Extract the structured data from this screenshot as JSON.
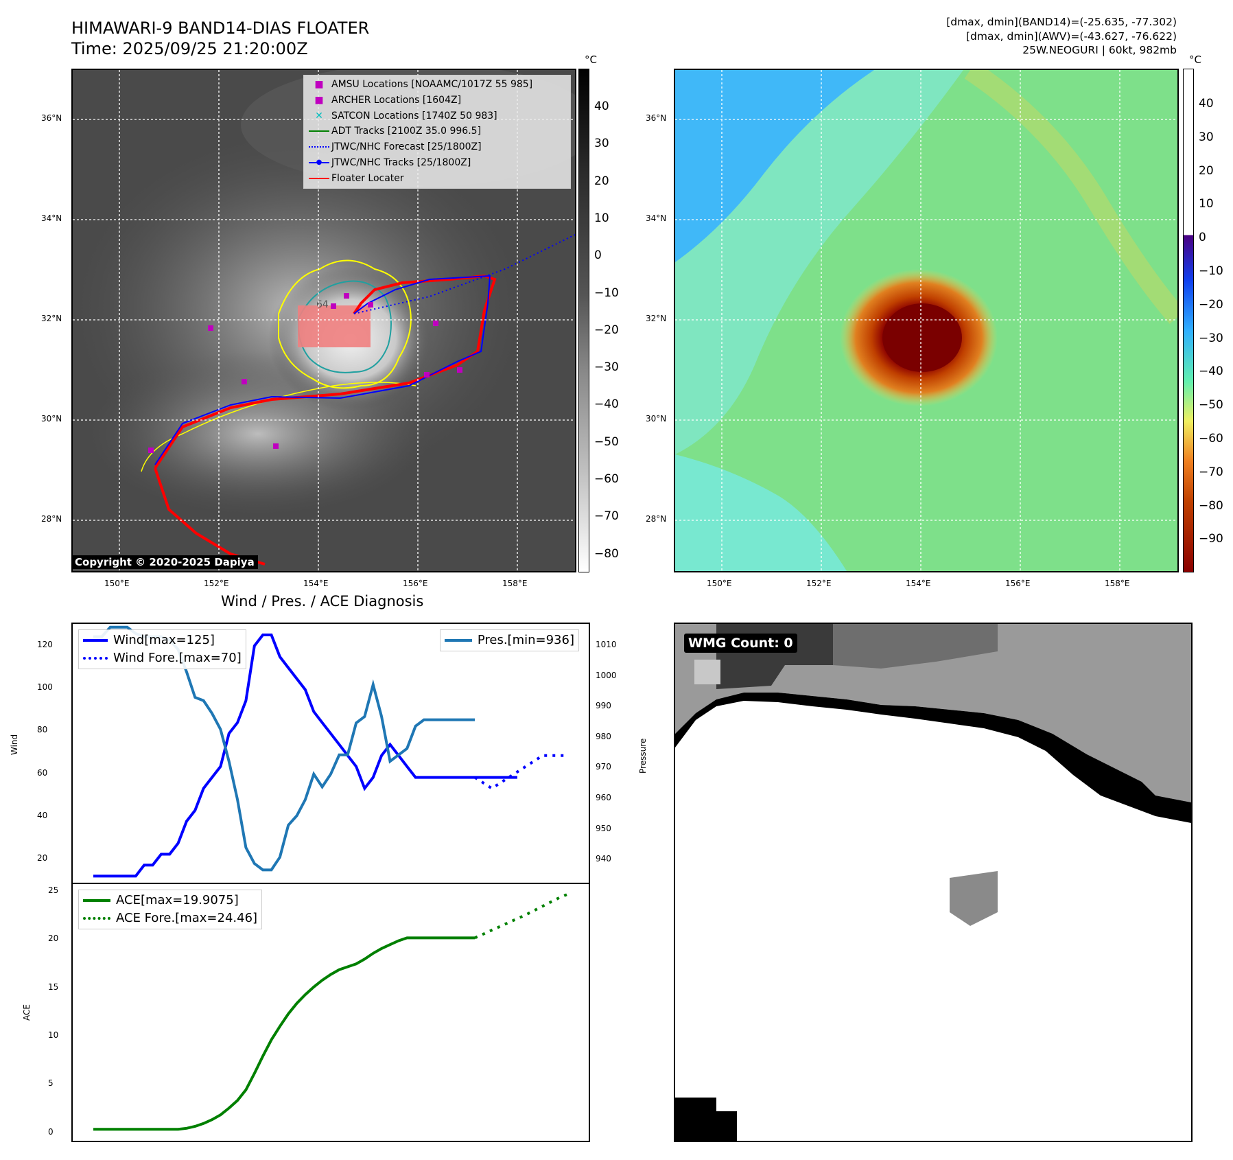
{
  "header": {
    "title_line1": "HIMAWARI-9 BAND14-DIAS FLOATER",
    "title_line2": "Time: 2025/09/25 21:20:00Z",
    "info_line1": "[dmax, dmin](BAND14)=(-25.635, -77.302)",
    "info_line2": "[dmax, dmin](AWV)=(-43.627, -76.622)",
    "info_line3": "25W.NEOGURI | 60kt, 982mb"
  },
  "map": {
    "lat_labels": [
      "36°N",
      "34°N",
      "32°N",
      "30°N",
      "28°N"
    ],
    "lon_labels": [
      "150°E",
      "152°E",
      "154°E",
      "156°E",
      "158°E"
    ],
    "contour_label": "64",
    "copyright": "Copyright © 2020-2025 Dapiya",
    "legend": [
      {
        "label": "AMSU Locations [NOAAMC/1017Z 55 985]",
        "color": "#bf00bf",
        "symbol": "square"
      },
      {
        "label": "ARCHER Locations [1604Z]",
        "color": "#bf00bf",
        "symbol": "square"
      },
      {
        "label": "SATCON Locations [1740Z 50 983]",
        "color": "#00bfbf",
        "symbol": "x"
      },
      {
        "label": "ADT Tracks [2100Z 35.0 996.5]",
        "color": "#008000",
        "symbol": "line"
      },
      {
        "label": "JTWC/NHC Forecast [25/1800Z]",
        "color": "#0000ff",
        "symbol": "dotted"
      },
      {
        "label": "JTWC/NHC Tracks [25/1800Z]",
        "color": "#0000ff",
        "symbol": "line-dot"
      },
      {
        "label": "Floater Locater",
        "color": "#ff0000",
        "symbol": "line"
      }
    ]
  },
  "colorbar_left": {
    "unit": "°C",
    "ticks": [
      "40",
      "30",
      "20",
      "10",
      "0",
      "−10",
      "−20",
      "−30",
      "−40",
      "−50",
      "−60",
      "−70",
      "−80"
    ]
  },
  "colorbar_right": {
    "unit": "°C",
    "ticks": [
      "40",
      "30",
      "20",
      "10",
      "0",
      "−10",
      "−20",
      "−30",
      "−40",
      "−50",
      "−60",
      "−70",
      "−80",
      "−90"
    ]
  },
  "diagnosis": {
    "title": "Wind / Pres. / ACE Diagnosis",
    "wind_axis_label": "Wind",
    "pressure_axis_label": "Pressure",
    "ace_axis_label": "ACE",
    "wind_ticks": [
      "120",
      "100",
      "80",
      "60",
      "40",
      "20"
    ],
    "pressure_ticks": [
      "1010",
      "1000",
      "990",
      "980",
      "970",
      "960",
      "950",
      "940"
    ],
    "ace_ticks": [
      "25",
      "20",
      "15",
      "10",
      "5",
      "0"
    ],
    "legend_wind": "Wind[max=125]",
    "legend_wind_fore": "Wind Fore.[max=70]",
    "legend_pres": "Pres.[min=936]",
    "legend_ace": "ACE[max=19.9075]",
    "legend_ace_fore": "ACE Fore.[max=24.46]"
  },
  "wmg": {
    "badge": "WMG Count: 0"
  },
  "chart_data": [
    {
      "type": "line",
      "title": "Wind / Pres. / ACE Diagnosis",
      "ylabel": "Wind",
      "ylim": [
        12,
        130
      ],
      "series": [
        {
          "name": "Wind[max=125]",
          "color": "#0000ff",
          "x": [
            0,
            1,
            2,
            3,
            4,
            5,
            6,
            7,
            8,
            9,
            10,
            11,
            12,
            13,
            14,
            15,
            16,
            17,
            18,
            19,
            20,
            21,
            22,
            23,
            24,
            25,
            26,
            27,
            28,
            29,
            30,
            31,
            32,
            33,
            34,
            35,
            36,
            37,
            38,
            39,
            40,
            41,
            42,
            43,
            44,
            45,
            46,
            47,
            48,
            49,
            50
          ],
          "values": [
            15,
            15,
            15,
            15,
            15,
            15,
            20,
            20,
            25,
            25,
            30,
            40,
            45,
            55,
            60,
            65,
            80,
            85,
            95,
            120,
            125,
            125,
            115,
            110,
            105,
            100,
            90,
            85,
            80,
            75,
            70,
            65,
            55,
            60,
            70,
            75,
            70,
            65,
            60,
            60,
            60,
            60,
            60,
            60,
            60,
            60,
            60,
            60,
            60,
            60,
            60
          ]
        },
        {
          "name": "Wind Fore.[max=70]",
          "color": "#0000ff",
          "style": "dotted",
          "x": [
            45,
            47,
            49,
            51,
            53,
            55,
            56
          ],
          "values": [
            60,
            55,
            60,
            65,
            70,
            70,
            70
          ]
        },
        {
          "name": "Pres.[min=936]",
          "color": "#1f77b4",
          "axis": "right",
          "ylim": [
            932,
            1013
          ],
          "x": [
            0,
            1,
            2,
            3,
            4,
            5,
            6,
            7,
            8,
            9,
            10,
            11,
            12,
            13,
            14,
            15,
            16,
            17,
            18,
            19,
            20,
            21,
            22,
            23,
            24,
            25,
            26,
            27,
            28,
            29,
            30,
            31,
            32,
            33,
            34,
            35,
            36,
            37,
            38,
            39,
            40,
            41,
            42,
            43,
            44,
            45
          ],
          "values": [
            1009,
            1009,
            1012,
            1012,
            1012,
            1010,
            1009,
            1009,
            1009,
            1008,
            1005,
            998,
            990,
            989,
            985,
            980,
            970,
            958,
            943,
            938,
            936,
            936,
            940,
            950,
            953,
            958,
            966,
            962,
            966,
            972,
            972,
            982,
            984,
            994,
            984,
            970,
            972,
            974,
            981,
            983,
            983,
            983,
            983,
            983,
            983,
            983
          ]
        }
      ]
    },
    {
      "type": "line",
      "ylabel": "ACE",
      "ylim": [
        -1.2,
        25.5
      ],
      "series": [
        {
          "name": "ACE[max=19.9075]",
          "color": "#008000",
          "x": [
            0,
            1,
            2,
            3,
            4,
            5,
            6,
            7,
            8,
            9,
            10,
            11,
            12,
            13,
            14,
            15,
            16,
            17,
            18,
            19,
            20,
            21,
            22,
            23,
            24,
            25,
            26,
            27,
            28,
            29,
            30,
            31,
            32,
            33,
            34,
            35,
            36,
            37,
            38,
            39,
            40,
            41,
            42,
            43,
            44,
            45
          ],
          "values": [
            0,
            0,
            0,
            0,
            0,
            0,
            0,
            0,
            0,
            0,
            0,
            0.1,
            0.3,
            0.6,
            1.0,
            1.5,
            2.2,
            3.0,
            4.1,
            5.8,
            7.6,
            9.3,
            10.7,
            12.0,
            13.1,
            14.0,
            14.8,
            15.5,
            16.1,
            16.6,
            16.9,
            17.2,
            17.7,
            18.3,
            18.8,
            19.2,
            19.6,
            19.9,
            19.9,
            19.9,
            19.9,
            19.9,
            19.9,
            19.9,
            19.9,
            19.9
          ]
        },
        {
          "name": "ACE Fore.[max=24.46]",
          "color": "#008000",
          "style": "dotted",
          "x": [
            45,
            47,
            49,
            51,
            53,
            55,
            56
          ],
          "values": [
            19.9,
            20.7,
            21.5,
            22.3,
            23.2,
            24.1,
            24.46
          ]
        }
      ]
    }
  ]
}
